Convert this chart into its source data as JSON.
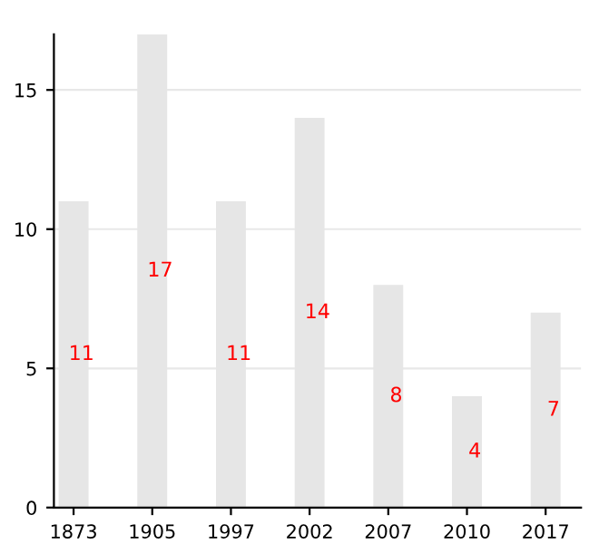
{
  "chart_data": {
    "type": "bar",
    "categories": [
      "1873",
      "1905",
      "1997",
      "2002",
      "2007",
      "2010",
      "2017"
    ],
    "values": [
      11,
      17,
      11,
      14,
      8,
      4,
      7
    ],
    "color": "#e6e6e6",
    "ylim": [
      0,
      17
    ],
    "yticks": [
      0,
      5,
      10,
      15
    ],
    "grid": "y",
    "data_labels": true
  }
}
